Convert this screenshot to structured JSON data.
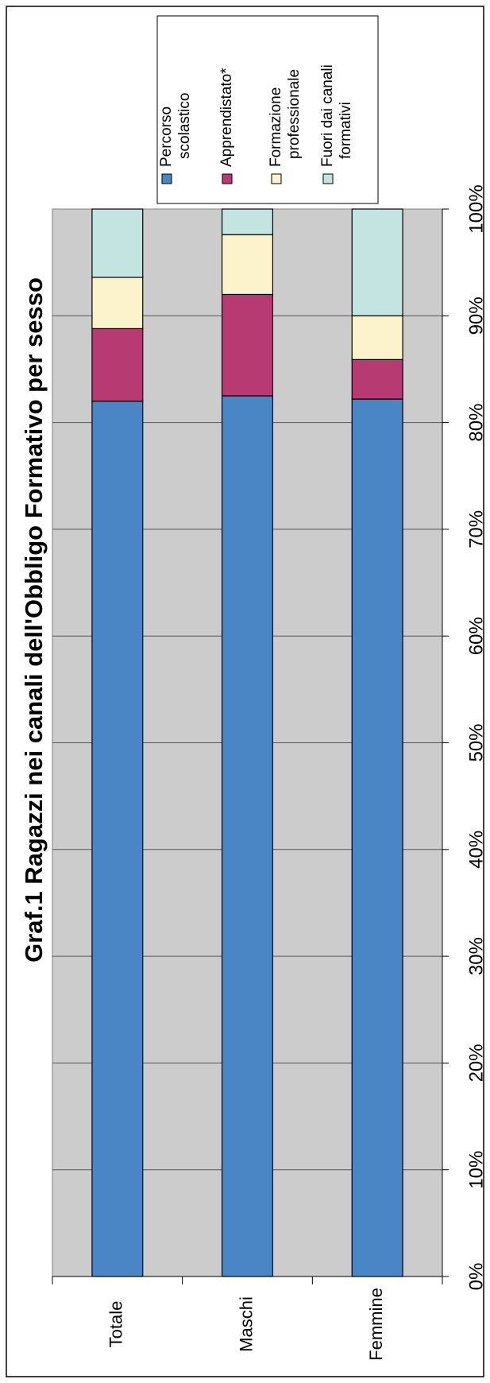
{
  "chart_data": {
    "type": "bar",
    "stacked": true,
    "percent": true,
    "orientation": "horizontal",
    "title": "Graf.1 Ragazzi nei canali dell'Obbligo Formativo per sesso",
    "categories": [
      "Totale",
      "Maschi",
      "Femmine"
    ],
    "series": [
      {
        "name": "Percorso scolastico",
        "name_lines": [
          "Percorso",
          "scolastico"
        ],
        "color": "#4a86c5",
        "values": [
          82.0,
          82.5,
          82.2
        ]
      },
      {
        "name": "Apprendistato*",
        "name_lines": [
          "Apprendistato*"
        ],
        "color": "#b83a73",
        "values": [
          6.8,
          9.5,
          3.7
        ]
      },
      {
        "name": "Formazione professionale",
        "name_lines": [
          "Formazione",
          "professionale"
        ],
        "color": "#fcf2cb",
        "values": [
          4.8,
          5.6,
          4.1
        ]
      },
      {
        "name": "Fuori dai canali formativi",
        "name_lines": [
          "Fuori dai canali",
          "formativi"
        ],
        "color": "#c3e4e0",
        "values": [
          6.4,
          2.4,
          10.0
        ]
      }
    ],
    "x_ticks": [
      "0%",
      "10%",
      "20%",
      "30%",
      "40%",
      "50%",
      "60%",
      "70%",
      "80%",
      "90%",
      "100%"
    ],
    "xlim": [
      0,
      100
    ],
    "grid": true,
    "legend_position": "top-right",
    "plot_background": "#cccccc"
  }
}
